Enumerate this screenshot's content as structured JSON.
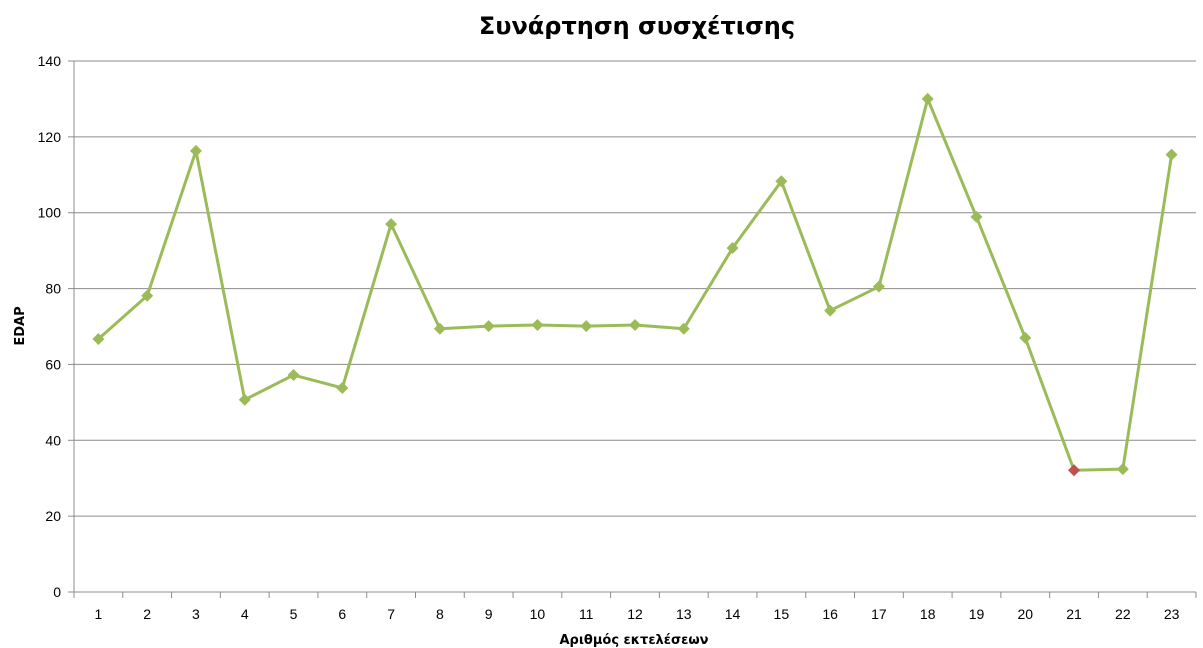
{
  "chart_data": {
    "type": "line",
    "title": "Συνάρτηση συσχέτισης",
    "xlabel": "Αριθμός εκτελέσεων",
    "ylabel": "EDAP",
    "ylim": [
      0,
      140
    ],
    "yticks": [
      0,
      20,
      40,
      60,
      80,
      100,
      120,
      140
    ],
    "grid": true,
    "categories": [
      "1",
      "2",
      "3",
      "4",
      "5",
      "6",
      "7",
      "8",
      "9",
      "10",
      "11",
      "12",
      "13",
      "14",
      "15",
      "16",
      "17",
      "18",
      "19",
      "20",
      "21",
      "22",
      "23"
    ],
    "series": [
      {
        "values": [
          66.7,
          78.1,
          116.3,
          50.7,
          57.2,
          53.8,
          97.0,
          69.4,
          70.1,
          70.4,
          70.1,
          70.4,
          69.4,
          90.7,
          108.3,
          74.2,
          80.5,
          130.0,
          98.9,
          67.0,
          32.1,
          32.4,
          115.3
        ],
        "color": "#9bbb59",
        "highlight_index": 20,
        "highlight_color": "#c0504d"
      }
    ]
  }
}
